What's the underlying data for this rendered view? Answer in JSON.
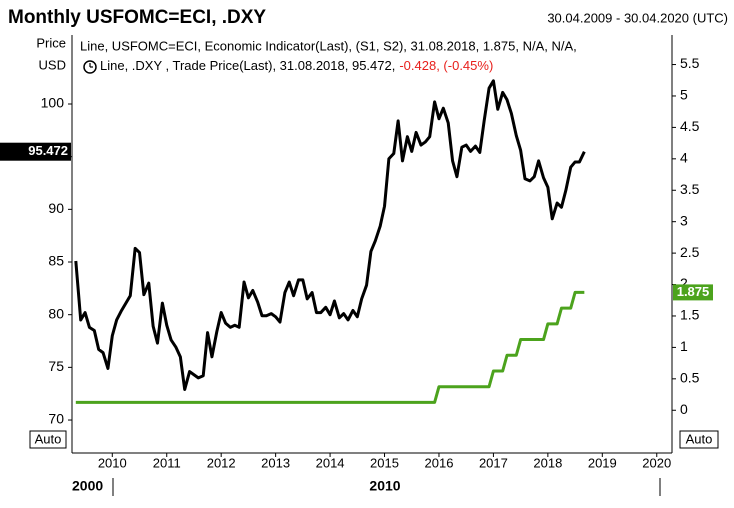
{
  "chart_data": {
    "type": "line",
    "title": "Monthly USFOMC=ECI, .DXY",
    "subtitle": "30.04.2009 - 30.04.2020 (UTC)",
    "y_label": [
      "Price",
      "USD"
    ],
    "auto_label": "Auto",
    "decade_labels": [
      "2000",
      "2010"
    ],
    "change": "-0.428, (-0.45%)",
    "change_color": "#e8201c",
    "x": [
      2009.33,
      2009.42,
      2009.5,
      2009.58,
      2009.67,
      2009.75,
      2009.83,
      2009.92,
      2010,
      2010.08,
      2010.17,
      2010.25,
      2010.33,
      2010.42,
      2010.5,
      2010.58,
      2010.67,
      2010.75,
      2010.83,
      2010.92,
      2011,
      2011.08,
      2011.17,
      2011.25,
      2011.33,
      2011.42,
      2011.5,
      2011.58,
      2011.67,
      2011.75,
      2011.83,
      2011.92,
      2012,
      2012.08,
      2012.17,
      2012.25,
      2012.33,
      2012.42,
      2012.5,
      2012.58,
      2012.67,
      2012.75,
      2012.83,
      2012.92,
      2013,
      2013.08,
      2013.17,
      2013.25,
      2013.33,
      2013.42,
      2013.5,
      2013.58,
      2013.67,
      2013.75,
      2013.83,
      2013.92,
      2014,
      2014.08,
      2014.17,
      2014.25,
      2014.33,
      2014.42,
      2014.5,
      2014.58,
      2014.67,
      2014.75,
      2014.83,
      2014.92,
      2015,
      2015.08,
      2015.17,
      2015.25,
      2015.33,
      2015.42,
      2015.5,
      2015.58,
      2015.67,
      2015.75,
      2015.83,
      2015.92,
      2016,
      2016.08,
      2016.17,
      2016.25,
      2016.33,
      2016.42,
      2016.5,
      2016.58,
      2016.67,
      2016.75,
      2016.83,
      2016.92,
      2017,
      2017.08,
      2017.17,
      2017.25,
      2017.33,
      2017.42,
      2017.5,
      2017.58,
      2017.67,
      2017.75,
      2017.83,
      2017.92,
      2018,
      2018.08,
      2018.17,
      2018.25,
      2018.33,
      2018.42,
      2018.5,
      2018.58,
      2018.67
    ],
    "series": [
      {
        "name": "Line, .DXY , Trade Price(Last), 31.08.2018, 95.472,",
        "color": "#000000",
        "values": [
          85.1,
          79.5,
          80.2,
          78.8,
          78.5,
          76.7,
          76.4,
          74.9,
          78.0,
          79.5,
          80.4,
          81.1,
          81.8,
          86.3,
          85.9,
          81.9,
          83.0,
          78.9,
          77.3,
          81.1,
          79.0,
          77.6,
          76.9,
          76.0,
          72.9,
          74.6,
          74.3,
          74.0,
          74.2,
          78.3,
          76.0,
          78.4,
          80.2,
          79.2,
          78.8,
          79.0,
          78.8,
          83.1,
          81.6,
          82.3,
          81.2,
          79.9,
          79.9,
          80.1,
          79.8,
          79.3,
          82.1,
          83.1,
          81.8,
          83.3,
          83.3,
          81.5,
          82.1,
          80.2,
          80.2,
          80.7,
          80.0,
          81.3,
          79.7,
          80.1,
          79.5,
          80.4,
          79.8,
          81.5,
          82.8,
          86.0,
          87.0,
          88.4,
          90.3,
          94.8,
          95.3,
          98.4,
          94.6,
          96.9,
          95.5,
          97.3,
          96.1,
          96.4,
          96.9,
          100.2,
          98.6,
          99.6,
          98.2,
          94.6,
          93.1,
          95.9,
          96.1,
          95.5,
          96.0,
          95.4,
          98.4,
          101.5,
          102.2,
          99.5,
          101.1,
          100.4,
          99.1,
          97.0,
          95.6,
          92.9,
          92.7,
          93.1,
          94.6,
          93.0,
          92.1,
          89.1,
          90.6,
          90.2,
          91.8,
          94.0,
          94.5,
          94.5,
          95.472
        ]
      },
      {
        "name": "Line, USFOMC=ECI, Economic Indicator(Last), (S1, S2), 31.08.2018, 1.875, N/A, N/A,",
        "color": "#4ca31d",
        "axis": "y2",
        "values": [
          0.125,
          0.125,
          0.125,
          0.125,
          0.125,
          0.125,
          0.125,
          0.125,
          0.125,
          0.125,
          0.125,
          0.125,
          0.125,
          0.125,
          0.125,
          0.125,
          0.125,
          0.125,
          0.125,
          0.125,
          0.125,
          0.125,
          0.125,
          0.125,
          0.125,
          0.125,
          0.125,
          0.125,
          0.125,
          0.125,
          0.125,
          0.125,
          0.125,
          0.125,
          0.125,
          0.125,
          0.125,
          0.125,
          0.125,
          0.125,
          0.125,
          0.125,
          0.125,
          0.125,
          0.125,
          0.125,
          0.125,
          0.125,
          0.125,
          0.125,
          0.125,
          0.125,
          0.125,
          0.125,
          0.125,
          0.125,
          0.125,
          0.125,
          0.125,
          0.125,
          0.125,
          0.125,
          0.125,
          0.125,
          0.125,
          0.125,
          0.125,
          0.125,
          0.125,
          0.125,
          0.125,
          0.125,
          0.125,
          0.125,
          0.125,
          0.125,
          0.125,
          0.125,
          0.125,
          0.125,
          0.375,
          0.375,
          0.375,
          0.375,
          0.375,
          0.375,
          0.375,
          0.375,
          0.375,
          0.375,
          0.375,
          0.375,
          0.625,
          0.625,
          0.625,
          0.875,
          0.875,
          0.875,
          1.125,
          1.125,
          1.125,
          1.125,
          1.125,
          1.125,
          1.375,
          1.375,
          1.375,
          1.625,
          1.625,
          1.625,
          1.875,
          1.875,
          1.875
        ]
      }
    ],
    "xlim": [
      2009.26,
      2020.28
    ],
    "xticks": [
      2010,
      2011,
      2012,
      2013,
      2014,
      2015,
      2016,
      2017,
      2018,
      2019,
      2020
    ],
    "ylim": [
      66.87,
      106.55
    ],
    "yticks": [
      70,
      75,
      80,
      85,
      90,
      95,
      100
    ],
    "y2lim": [
      -0.68,
      5.97
    ],
    "y2ticks": [
      0,
      0.5,
      1,
      1.5,
      2,
      2.5,
      3,
      3.5,
      4,
      4.5,
      5,
      5.5
    ],
    "grid": false
  }
}
